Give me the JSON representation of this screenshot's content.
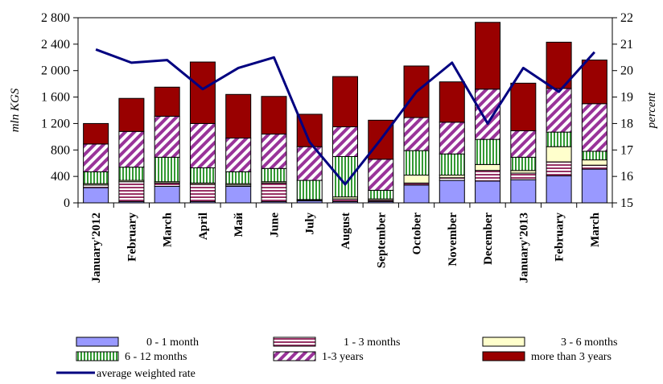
{
  "chart_data": {
    "type": "bar",
    "stacked": true,
    "categories": [
      "January'2012",
      "February",
      "March",
      "April",
      "Май",
      "June",
      "July",
      "August",
      "September",
      "October",
      "November",
      "December",
      "January'2013",
      "February",
      "March"
    ],
    "series": [
      {
        "name": "0 - 1 month",
        "color": "#9999ff",
        "pattern": "solid",
        "values": [
          230,
          20,
          250,
          20,
          250,
          20,
          30,
          20,
          20,
          270,
          340,
          330,
          350,
          410,
          510
        ]
      },
      {
        "name": "1 - 3 months",
        "color": "#993366",
        "pattern": "horizontal-stripes",
        "values": [
          40,
          300,
          50,
          260,
          20,
          280,
          10,
          40,
          20,
          30,
          40,
          160,
          100,
          210,
          60
        ]
      },
      {
        "name": "3 - 6 months",
        "color": "#ffffcc",
        "pattern": "solid",
        "values": [
          20,
          20,
          20,
          20,
          20,
          20,
          10,
          30,
          20,
          120,
          40,
          90,
          40,
          230,
          80
        ]
      },
      {
        "name": "6 - 12 months",
        "color": "#339933",
        "pattern": "vertical-stripes",
        "values": [
          180,
          200,
          370,
          230,
          180,
          200,
          290,
          610,
          130,
          370,
          320,
          380,
          200,
          220,
          130
        ]
      },
      {
        "name": "1-3 years",
        "color": "#993399",
        "pattern": "diagonal-stripes",
        "values": [
          420,
          540,
          620,
          670,
          510,
          520,
          510,
          450,
          470,
          500,
          480,
          760,
          400,
          660,
          720
        ]
      },
      {
        "name": "more than 3 years",
        "color": "#990000",
        "pattern": "solid",
        "values": [
          310,
          500,
          440,
          930,
          660,
          570,
          490,
          760,
          590,
          780,
          610,
          1010,
          720,
          700,
          660
        ]
      }
    ],
    "line_series": {
      "name": "average weighted rate",
      "color": "#000080",
      "axis": "right",
      "values": [
        20.8,
        20.3,
        20.4,
        19.3,
        20.1,
        20.5,
        17.3,
        15.7,
        17.4,
        19.2,
        20.3,
        18.0,
        20.1,
        19.2,
        20.7
      ]
    },
    "y_left": {
      "label": "mln KGS",
      "min": 0,
      "max": 2800,
      "ticks": [
        0,
        400,
        800,
        1200,
        1600,
        2000,
        2400,
        2800
      ],
      "tick_labels": [
        "0",
        "400",
        "800",
        "1 200",
        "1 600",
        "2 000",
        "2 400",
        "2 800"
      ]
    },
    "y_right": {
      "label": "percent",
      "min": 15,
      "max": 22,
      "ticks": [
        15,
        16,
        17,
        18,
        19,
        20,
        21,
        22
      ],
      "tick_labels": [
        "15",
        "16",
        "17",
        "18",
        "19",
        "20",
        "21",
        "22"
      ]
    },
    "grid": false,
    "legend_position": "bottom"
  }
}
